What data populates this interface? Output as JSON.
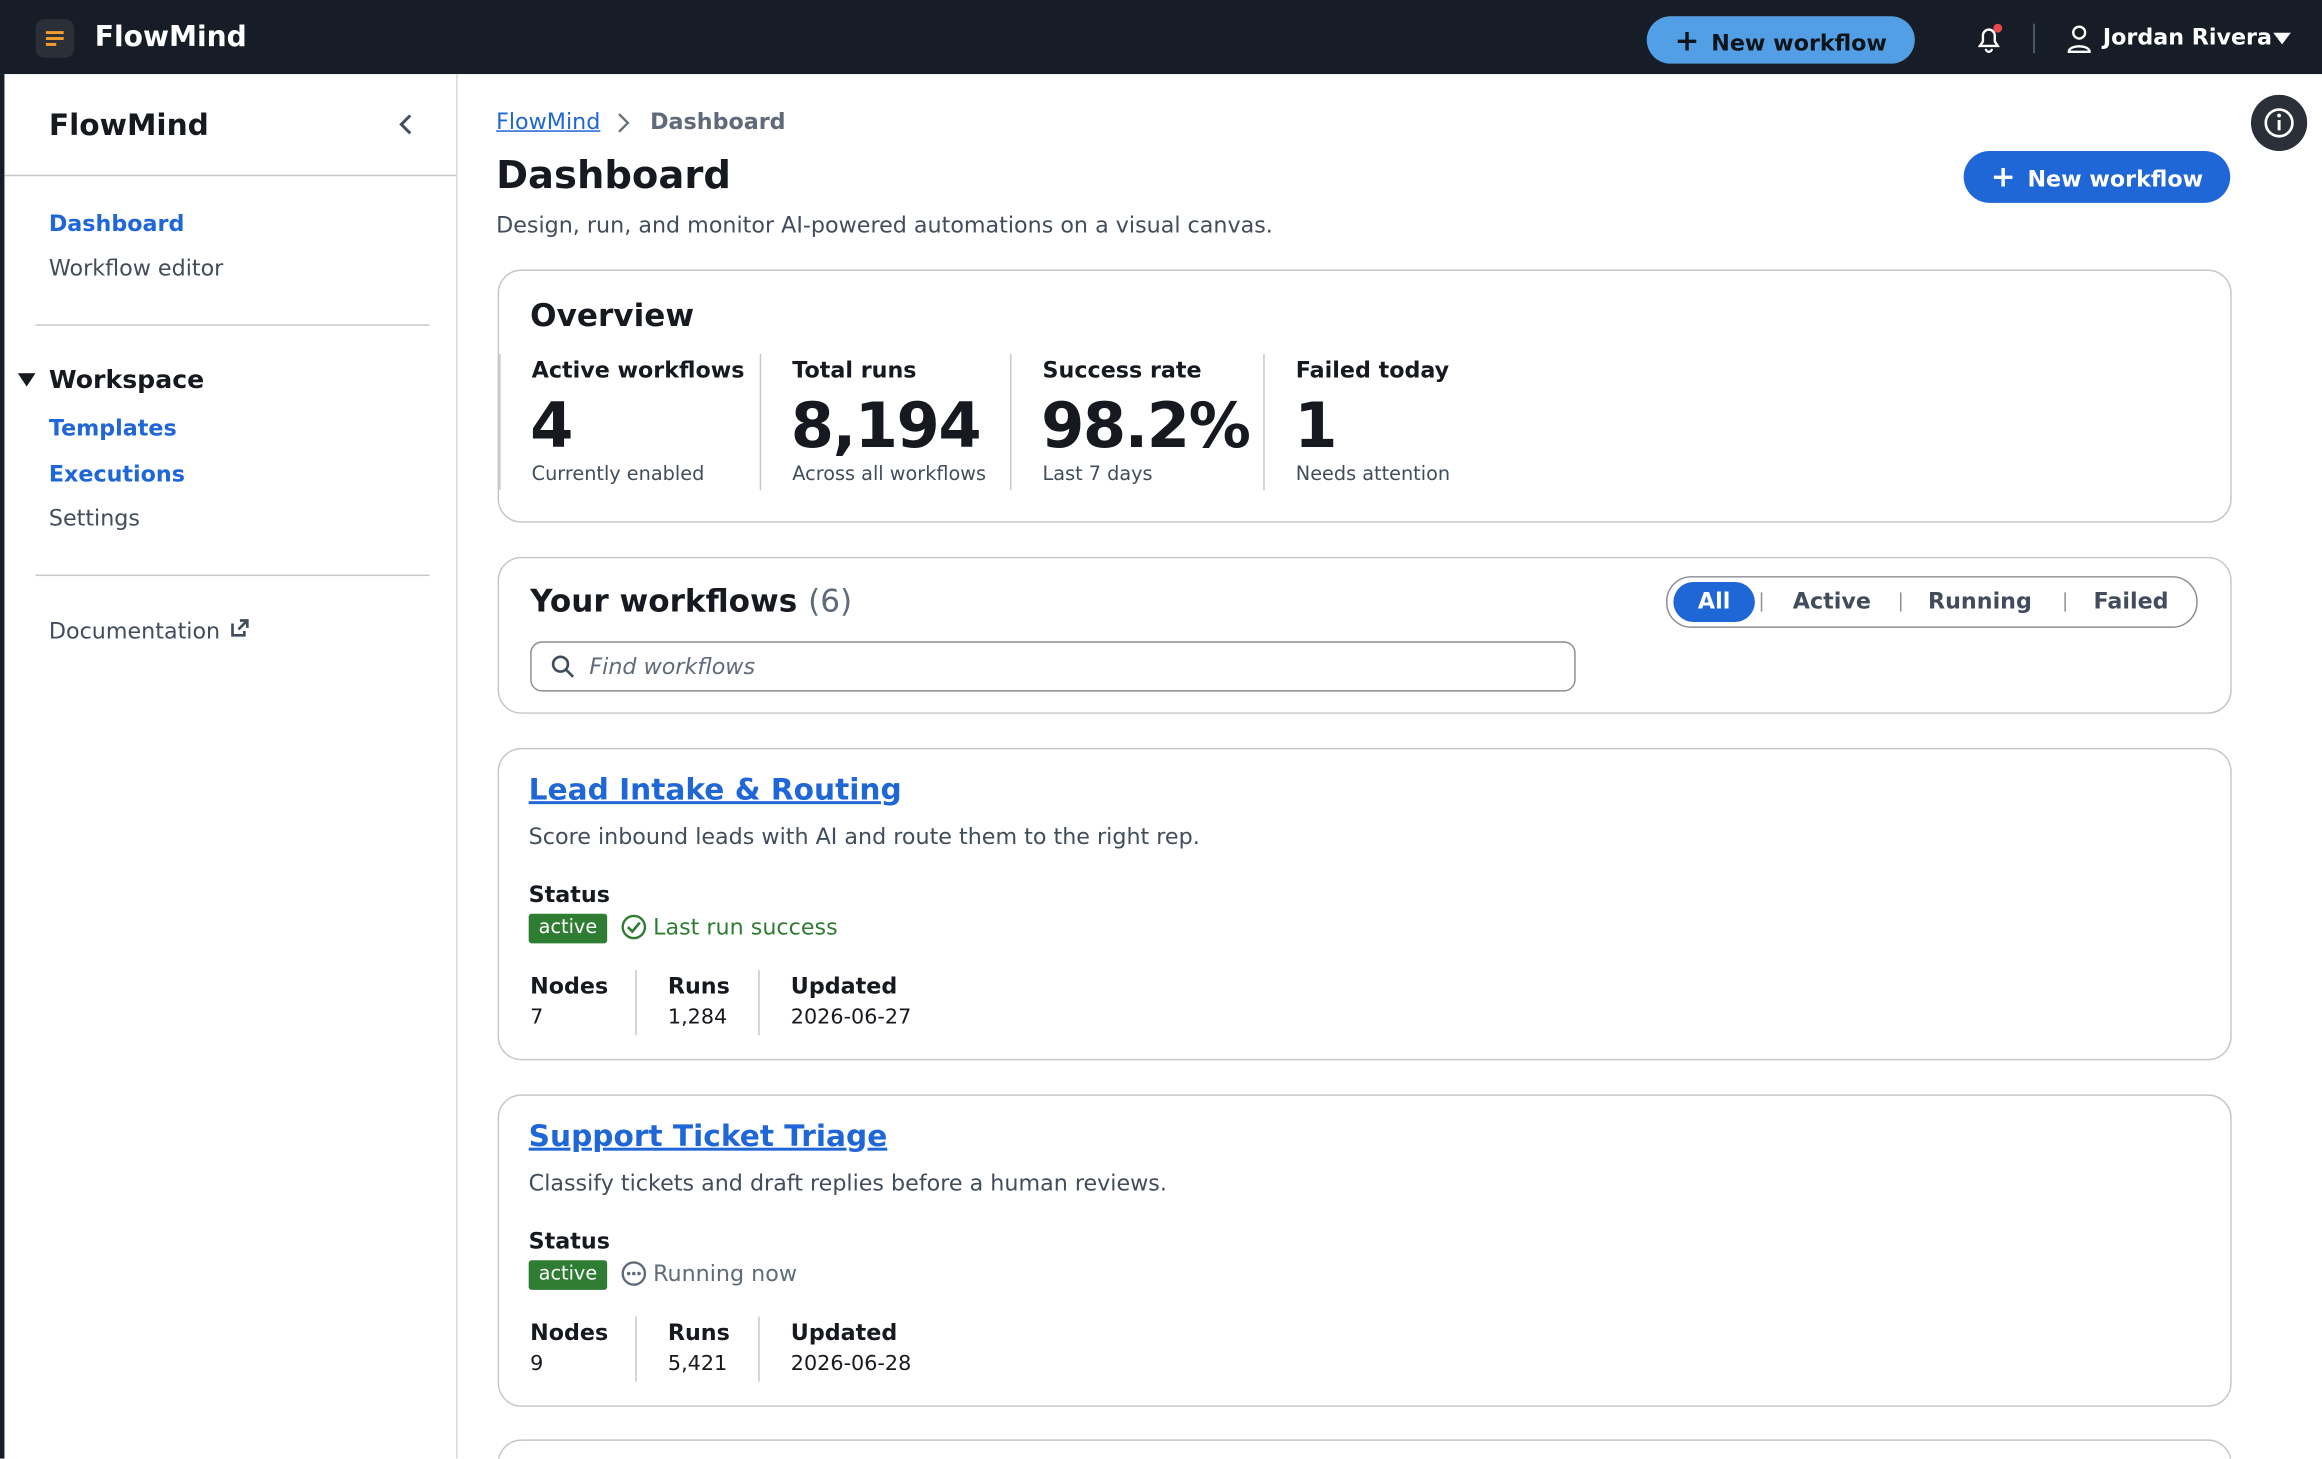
{
  "topbar": {
    "brand": "FlowMind",
    "new_workflow": "New workflow",
    "user": "Jordan Rivera"
  },
  "sidebar": {
    "title": "FlowMind",
    "nav": [
      "Dashboard",
      "Workflow editor"
    ],
    "section": "Workspace",
    "section_items": [
      "Templates",
      "Executions",
      "Settings"
    ],
    "documentation": "Documentation"
  },
  "breadcrumb": [
    "FlowMind",
    "Dashboard"
  ],
  "header": {
    "title": "Dashboard",
    "subtitle": "Design, run, and monitor AI-powered automations on a visual canvas.",
    "button": "New workflow"
  },
  "overview": {
    "title": "Overview",
    "stats": [
      {
        "label": "Active workflows",
        "value": 4,
        "note": "Currently enabled"
      },
      {
        "label": "Total runs",
        "value": "8,194",
        "note": "Across all workflows"
      },
      {
        "label": "Success rate",
        "value": "98.2%",
        "note": "Last 7 days"
      },
      {
        "label": "Failed today",
        "value": 1,
        "note": "Needs attention"
      }
    ]
  },
  "workflows": {
    "title": "Your workflows",
    "count": "(6)",
    "filters": [
      "All",
      "Active",
      "Running",
      "Failed"
    ],
    "search_placeholder": "Find workflows",
    "items": [
      {
        "name": "Lead Intake & Routing",
        "description": "Score inbound leads with AI and route them to the right rep.",
        "status_label": "Status",
        "status": "active",
        "last_run": "Last run success",
        "nodes_label": "Nodes",
        "nodes": 7,
        "runs_label": "Runs",
        "runs": "1,284",
        "updated_label": "Updated",
        "updated": "2026-06-27"
      },
      {
        "name": "Support Ticket Triage",
        "description": "Classify tickets and draft replies before a human reviews.",
        "status_label": "Status",
        "status": "active",
        "last_run": "Running now",
        "nodes_label": "Nodes",
        "nodes": 9,
        "runs_label": "Runs",
        "runs": "5,421",
        "updated_label": "Updated",
        "updated": "2026-06-28"
      }
    ]
  }
}
